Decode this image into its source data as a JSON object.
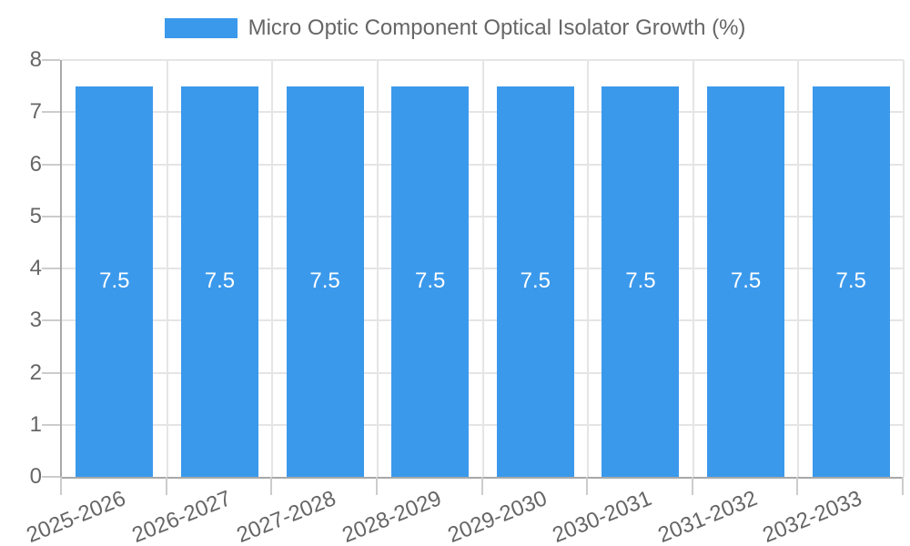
{
  "chart_data": {
    "type": "bar",
    "title": "Micro Optic Component Optical Isolator Growth (%)",
    "categories": [
      "2025-2026",
      "2026-2027",
      "2027-2028",
      "2028-2029",
      "2029-2030",
      "2030-2031",
      "2031-2032",
      "2032-2033"
    ],
    "series": [
      {
        "name": "Micro Optic Component Optical Isolator Growth (%)",
        "values": [
          7.5,
          7.5,
          7.5,
          7.5,
          7.5,
          7.5,
          7.5,
          7.5
        ]
      }
    ],
    "bar_labels": [
      "7.5",
      "7.5",
      "7.5",
      "7.5",
      "7.5",
      "7.5",
      "7.5",
      "7.5"
    ],
    "xlabel": "",
    "ylabel": "",
    "ylim": [
      0,
      8
    ],
    "yticks": [
      0,
      1,
      2,
      3,
      4,
      5,
      6,
      7,
      8
    ],
    "grid": true,
    "legend_position": "top",
    "colors": {
      "bar": "#3b99ec",
      "bar_label": "#ffffff",
      "grid": "#e5e5e5",
      "tick_mark": "#cccccc",
      "axis_border": "#a8a8a8",
      "text": "#666666",
      "background": "#ffffff"
    }
  }
}
